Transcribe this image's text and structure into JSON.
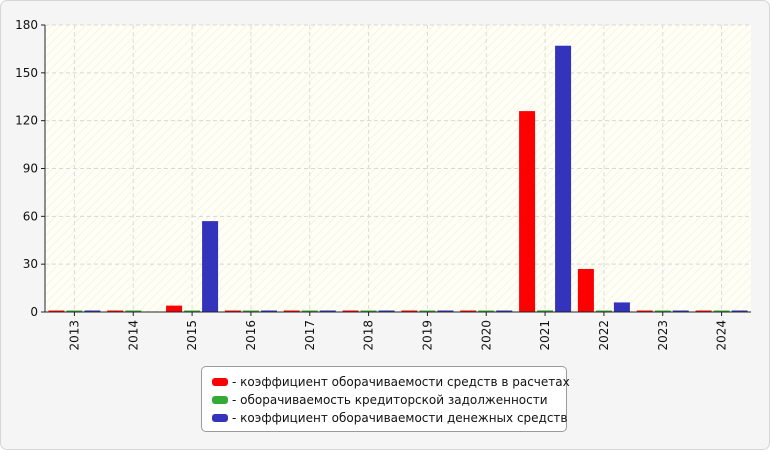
{
  "chart_data": {
    "type": "bar",
    "categories": [
      "2013",
      "2014",
      "2015",
      "2016",
      "2017",
      "2018",
      "2019",
      "2020",
      "2021",
      "2022",
      "2023",
      "2024"
    ],
    "series": [
      {
        "name": "- коэффициент оборачиваемости средств в расчетах",
        "color": "#ff0000",
        "values": [
          0.5,
          0.5,
          4,
          0.5,
          0.5,
          0.5,
          0.5,
          0.5,
          126,
          27,
          0.5,
          0.5
        ]
      },
      {
        "name": "- оборачиваемость кредиторской задолженности",
        "color": "#33aa33",
        "values": [
          0.5,
          0.5,
          0.5,
          0.5,
          0.5,
          0.5,
          0.5,
          0.5,
          1,
          0.5,
          0.5,
          0.5
        ]
      },
      {
        "name": "- коэффициент оборачиваемости денежных средств",
        "color": "#3333bb",
        "values": [
          0.5,
          0,
          57,
          0.5,
          0.5,
          0.5,
          0.5,
          0.5,
          167,
          6,
          0.5,
          0.5
        ]
      }
    ],
    "yticks": [
      "0",
      "30",
      "60",
      "90",
      "120",
      "150",
      "180"
    ],
    "ylim": [
      0,
      180
    ],
    "grid": true,
    "legend_position": "bottom-center"
  }
}
